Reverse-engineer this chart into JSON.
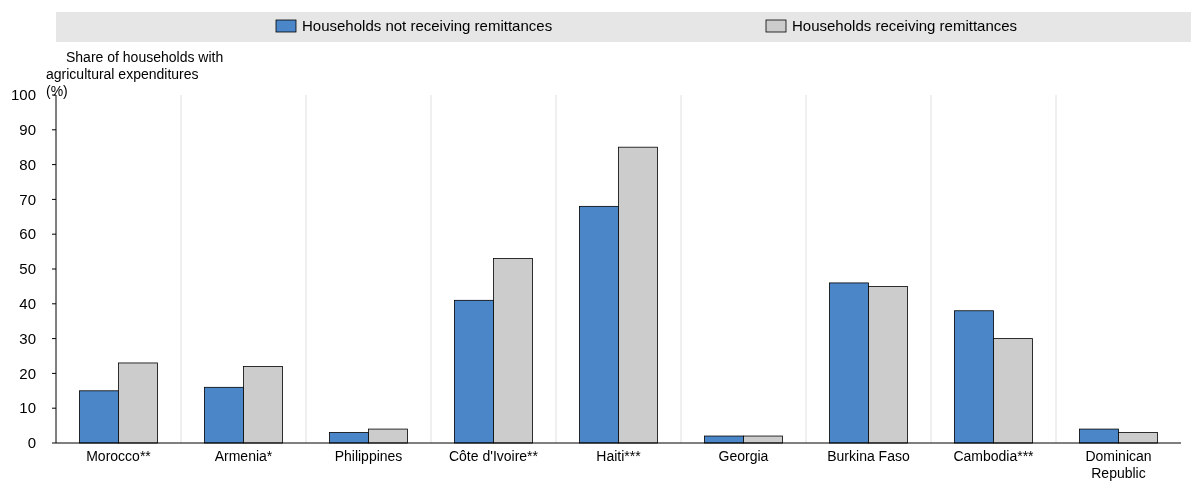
{
  "chart_data": {
    "type": "bar",
    "ylabel": "Share of households with agricultural expenditures (%)",
    "categories": [
      "Morocco**",
      "Armenia*",
      "Philippines",
      "Côte d'Ivoire**",
      "Haiti***",
      "Georgia",
      "Burkina Faso",
      "Cambodia***",
      "Dominican Republic"
    ],
    "series": [
      {
        "name": "Households not receiving remittances",
        "color": "#4a86c8",
        "values": [
          15,
          16,
          3,
          41,
          68,
          2,
          46,
          38,
          4
        ]
      },
      {
        "name": "Households receiving remittances",
        "color": "#cccccc",
        "values": [
          23,
          22,
          4,
          53,
          85,
          2,
          45,
          30,
          3
        ]
      }
    ],
    "ylim": [
      0,
      100
    ],
    "yticks": [
      0,
      10,
      20,
      30,
      40,
      50,
      60,
      70,
      80,
      90,
      100
    ],
    "grid": "x",
    "legend": "top"
  }
}
